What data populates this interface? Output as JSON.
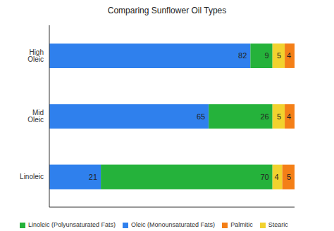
{
  "chart_data": {
    "type": "bar",
    "title": "Comparing Sunflower Oil Types",
    "orientation": "horizontal",
    "stacked": true,
    "data_labels": true,
    "tick_labels": "y",
    "grid": false,
    "legend": "bottom",
    "categories": [
      "High Oleic",
      "Mid Oleic",
      "Linoleic"
    ],
    "xlim": [
      0,
      100
    ],
    "series": [
      {
        "name": "Oleic (Monounsaturated Fats)",
        "color": "#2f80ed",
        "values": [
          82,
          65,
          21
        ]
      },
      {
        "name": "Linoleic (Polyunsaturated Fats)",
        "color": "#25b23b",
        "values": [
          9,
          26,
          70
        ]
      },
      {
        "name": "Stearic",
        "color": "#f2d22e",
        "values": [
          5,
          5,
          4
        ]
      },
      {
        "name": "Palmitic",
        "color": "#f47f17",
        "values": [
          4,
          4,
          5
        ]
      }
    ]
  }
}
